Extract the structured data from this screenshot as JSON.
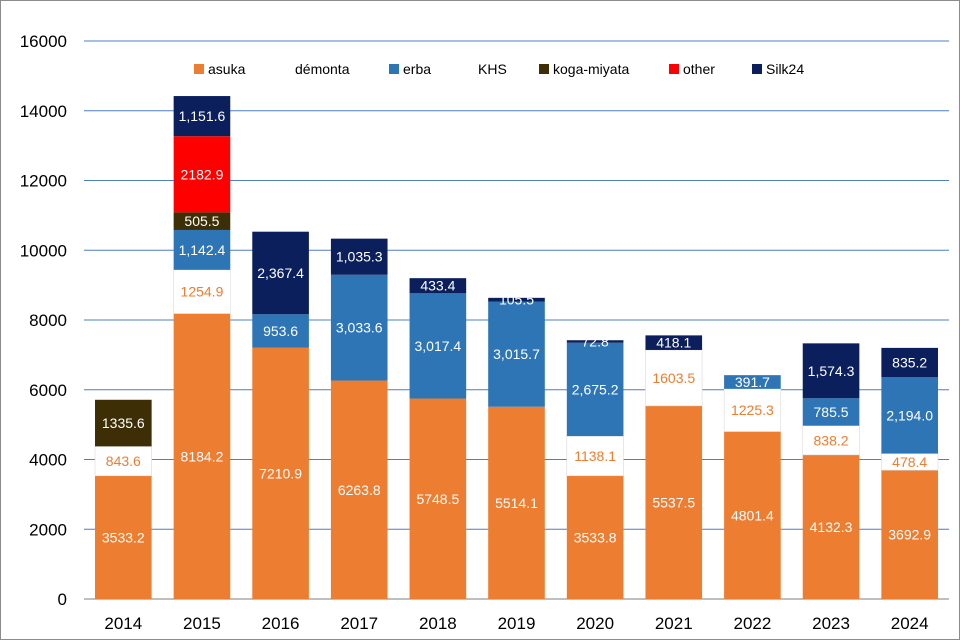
{
  "chart_data": {
    "type": "bar",
    "stacked": true,
    "title": "",
    "xlabel": "",
    "ylabel": "",
    "ylim": [
      0,
      16000
    ],
    "yticks": [
      0,
      2000,
      4000,
      6000,
      8000,
      10000,
      12000,
      14000,
      16000
    ],
    "grid": true,
    "legend_position": "top",
    "categories": [
      "2014",
      "2015",
      "2016",
      "2017",
      "2018",
      "2019",
      "2020",
      "2021",
      "2022",
      "2023",
      "2024"
    ],
    "series": [
      {
        "name": "asuka",
        "color": "#ED7D31",
        "label_color": "#ffffff",
        "values": [
          3533.2,
          8184.2,
          7210.9,
          6263.8,
          5748.5,
          5514.1,
          3533.8,
          5537.5,
          4801.4,
          4132.3,
          3692.9
        ],
        "labels": [
          "3533.2",
          "8184.2",
          "7210.9",
          "6263.8",
          "5748.5",
          "5514.1",
          "3533.8",
          "5537.5",
          "4801.4",
          "4132.3",
          "3692.9"
        ]
      },
      {
        "name": "démonta",
        "color": "#ffffff",
        "label_color": "#ED7D31",
        "values": [
          843.6,
          1254.9,
          0,
          0,
          0,
          0,
          1138.1,
          1603.5,
          1225.3,
          838.2,
          478.4
        ],
        "labels": [
          "843.6",
          "1254.9",
          "",
          "",
          "",
          "",
          "1138.1",
          "1603.5",
          "1225.3",
          "838.2",
          "478.4"
        ]
      },
      {
        "name": "erba",
        "color": "#2E75B6",
        "label_color": "#ffffff",
        "values": [
          0,
          1142.4,
          953.6,
          3033.6,
          3017.4,
          3015.7,
          2675.2,
          0,
          391.7,
          785.5,
          2194.0
        ],
        "labels": [
          "",
          "1,142.4",
          "953.6",
          "3,033.6",
          "3,017.4",
          "3,015.7",
          "2,675.2",
          "",
          "391.7",
          "785.5",
          "2,194.0"
        ]
      },
      {
        "name": "KHS",
        "color": "#ffffff",
        "label_color": "#ffffff",
        "values": [
          0,
          0,
          0,
          0,
          0,
          0,
          0,
          0,
          0,
          0,
          0
        ],
        "labels": [
          "",
          "",
          "",
          "",
          "",
          "",
          "",
          "",
          "",
          "",
          ""
        ]
      },
      {
        "name": "koga-miyata",
        "color": "#3D2E05",
        "label_color": "#ffffff",
        "values": [
          1335.6,
          505.5,
          0,
          0,
          0,
          0,
          0,
          0,
          0,
          0,
          0
        ],
        "labels": [
          "1335.6",
          "505.5",
          "",
          "",
          "",
          "",
          "",
          "",
          "",
          "",
          ""
        ]
      },
      {
        "name": "other",
        "color": "#FF0000",
        "label_color": "#ffffff",
        "values": [
          0,
          2182.9,
          0,
          0,
          0,
          0,
          0,
          0,
          0,
          0,
          0
        ],
        "labels": [
          "",
          "2182.9",
          "",
          "",
          "",
          "",
          "",
          "",
          "",
          "",
          ""
        ]
      },
      {
        "name": "Silk24",
        "color": "#0B1F5C",
        "label_color": "#ffffff",
        "values": [
          0,
          1151.6,
          2367.4,
          1035.3,
          433.4,
          105.5,
          72.8,
          418.1,
          0,
          1574.3,
          835.2
        ],
        "labels": [
          "",
          "1,151.6",
          "2,367.4",
          "1,035.3",
          "433.4",
          "105.5",
          "72.8",
          "418.1",
          "",
          "1,574.3",
          "835.2"
        ]
      }
    ],
    "colors": {
      "gridline": "#4F7FC0",
      "axis_text": "#000000",
      "demonta_border": "#d9d9d9"
    }
  }
}
